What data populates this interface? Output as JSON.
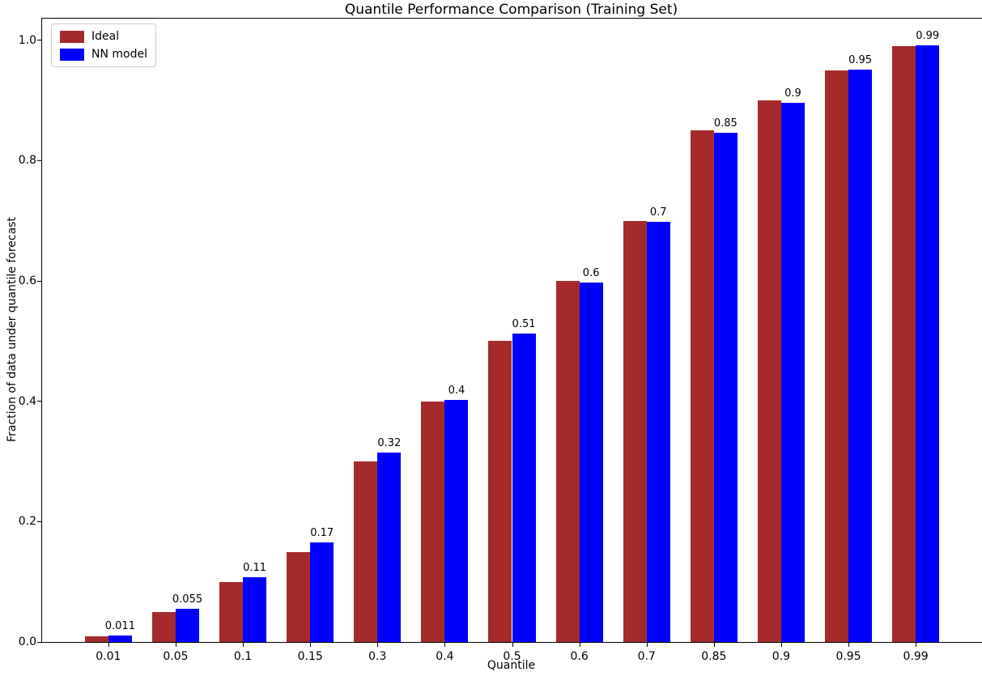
{
  "chart_data": {
    "type": "bar",
    "title": "Quantile Performance Comparison (Training Set)",
    "xlabel": "Quantile",
    "ylabel": "Fraction of data under quantile forecast",
    "categories": [
      "0.01",
      "0.05",
      "0.1",
      "0.15",
      "0.3",
      "0.4",
      "0.5",
      "0.6",
      "0.7",
      "0.85",
      "0.9",
      "0.95",
      "0.99"
    ],
    "series": [
      {
        "name": "Ideal",
        "color": "#A52A2A",
        "values": [
          0.01,
          0.05,
          0.1,
          0.15,
          0.3,
          0.4,
          0.5,
          0.6,
          0.7,
          0.85,
          0.9,
          0.95,
          0.99
        ]
      },
      {
        "name": "NN model",
        "color": "#0000FF",
        "values": [
          0.011,
          0.055,
          0.107,
          0.166,
          0.315,
          0.402,
          0.512,
          0.597,
          0.698,
          0.846,
          0.896,
          0.951,
          0.992
        ],
        "bar_labels": [
          "0.011",
          "0.055",
          "0.11",
          "0.17",
          "0.32",
          "0.4",
          "0.51",
          "0.6",
          "0.7",
          "0.85",
          "0.9",
          "0.95",
          "0.99"
        ]
      }
    ],
    "ytick_labels": [
      "0.0",
      "0.2",
      "0.4",
      "0.6",
      "0.8",
      "1.0"
    ],
    "yticks": [
      0.0,
      0.2,
      0.4,
      0.6,
      0.8,
      1.0
    ],
    "ylim": [
      0,
      1.036
    ],
    "grid": false,
    "legend": {
      "position": "upper-left",
      "entries": [
        "Ideal",
        "NN model"
      ]
    },
    "colors": {
      "ideal": "#A52A2A",
      "nn_model": "#0000FF",
      "axis": "#000000",
      "background": "#ffffff"
    }
  }
}
